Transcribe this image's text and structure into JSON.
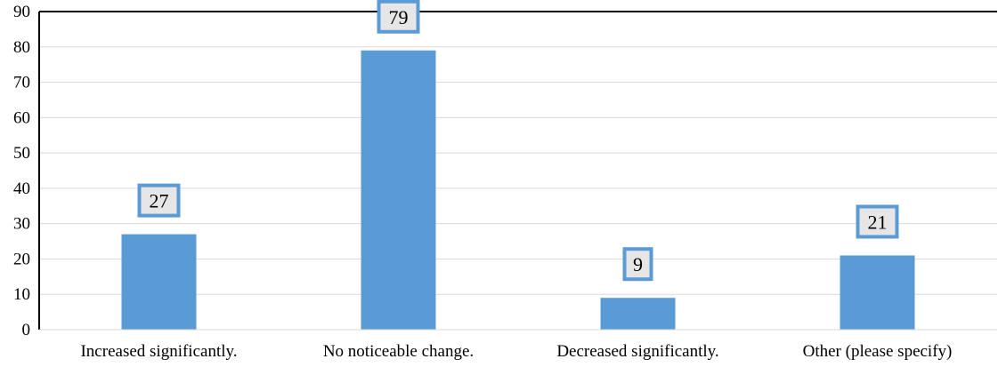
{
  "chart_data": {
    "type": "bar",
    "title": "",
    "xlabel": "",
    "ylabel": "",
    "categories": [
      "Increased significantly.",
      "No noticeable change.",
      "Decreased significantly.",
      "Other (please specify)"
    ],
    "values": [
      27,
      79,
      9,
      21
    ],
    "ylim": [
      0,
      90
    ],
    "yticks": [
      0,
      10,
      20,
      30,
      40,
      50,
      60,
      70,
      80,
      90
    ],
    "grid": true,
    "legend": "none",
    "bar_color": "#5B9BD5",
    "data_label_bg": "#E7E6E6",
    "data_label_border": "#5B9BD5",
    "gridline_color": "#D9D9D9",
    "frame_color": "#000000"
  }
}
